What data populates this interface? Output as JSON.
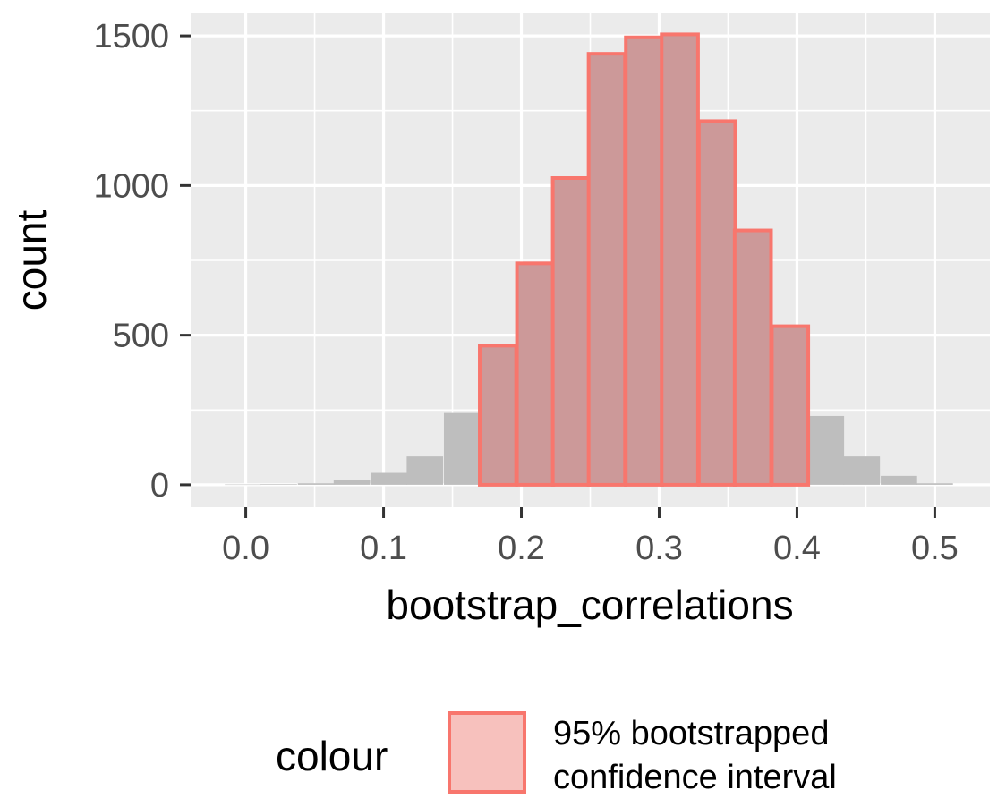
{
  "chart_data": {
    "type": "bar",
    "title": "",
    "xlabel": "bootstrap_correlations",
    "ylabel": "count",
    "xlim": [
      -0.04,
      0.54
    ],
    "ylim": [
      -75,
      1575
    ],
    "x_ticks": [
      "0.0",
      "0.1",
      "0.2",
      "0.3",
      "0.4",
      "0.5"
    ],
    "y_ticks": [
      "0",
      "500",
      "1000",
      "1500"
    ],
    "bin_width": 0.0264,
    "bins": [
      {
        "x": -0.002,
        "count": 1,
        "in_ci": false
      },
      {
        "x": 0.024,
        "count": 2,
        "in_ci": false
      },
      {
        "x": 0.051,
        "count": 5,
        "in_ci": false
      },
      {
        "x": 0.077,
        "count": 15,
        "in_ci": false
      },
      {
        "x": 0.104,
        "count": 40,
        "in_ci": false
      },
      {
        "x": 0.13,
        "count": 95,
        "in_ci": false
      },
      {
        "x": 0.157,
        "count": 240,
        "in_ci": false
      },
      {
        "x": 0.183,
        "count": 465,
        "in_ci": true
      },
      {
        "x": 0.21,
        "count": 740,
        "in_ci": true
      },
      {
        "x": 0.236,
        "count": 1025,
        "in_ci": true
      },
      {
        "x": 0.262,
        "count": 1440,
        "in_ci": true
      },
      {
        "x": 0.289,
        "count": 1495,
        "in_ci": true
      },
      {
        "x": 0.315,
        "count": 1505,
        "in_ci": true
      },
      {
        "x": 0.342,
        "count": 1215,
        "in_ci": true
      },
      {
        "x": 0.368,
        "count": 850,
        "in_ci": true
      },
      {
        "x": 0.395,
        "count": 530,
        "in_ci": true
      },
      {
        "x": 0.421,
        "count": 230,
        "in_ci": false
      },
      {
        "x": 0.447,
        "count": 95,
        "in_ci": false
      },
      {
        "x": 0.474,
        "count": 30,
        "in_ci": false
      },
      {
        "x": 0.5,
        "count": 5,
        "in_ci": false
      }
    ],
    "grid": true,
    "legend": {
      "position": "bottom",
      "title": "colour",
      "entries": [
        {
          "label_line1": "95% bootstrapped",
          "label_line2": "confidence interval"
        }
      ]
    },
    "colors": {
      "panel_background": "#ebebeb",
      "grid": "#ffffff",
      "bar_fill_outside": "#bebebe",
      "bar_fill_inside": "#cc9999",
      "bar_outline_inside": "#f8766d",
      "legend_key_fill": "#f7c1bd"
    }
  }
}
